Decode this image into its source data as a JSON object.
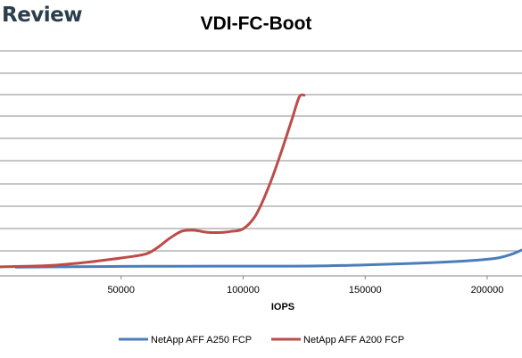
{
  "brand": {
    "text": "Review"
  },
  "chart_data": {
    "type": "line",
    "title": "VDI-FC-Boot",
    "xlabel": "IOPS",
    "ylabel": "",
    "xlim": [
      0,
      215000
    ],
    "xticks": [
      50000,
      100000,
      150000,
      200000
    ],
    "xtick_labels": [
      "50000",
      "100000",
      "150000",
      "200000"
    ],
    "grid": true,
    "y_ticks_visible": false,
    "legend_position": "bottom",
    "series": [
      {
        "name": "NetApp AFF A250 FCP",
        "color": "#4a7ebb",
        "x": [
          7000,
          30000,
          60000,
          90000,
          110000,
          130000,
          150000,
          170000,
          190000,
          200000,
          205000,
          210000,
          214000
        ],
        "y": [
          0.35,
          0.6,
          0.8,
          0.9,
          0.9,
          1.0,
          1.6,
          2.4,
          3.6,
          4.6,
          5.5,
          7.3,
          9.5
        ]
      },
      {
        "name": "NetApp AFF A200 FCP",
        "color": "#be4b48",
        "x": [
          0,
          20000,
          30000,
          40000,
          50000,
          60000,
          65000,
          70000,
          75000,
          80000,
          85000,
          90000,
          95000,
          100000,
          105000,
          110000,
          115000,
          120000,
          123000,
          125000
        ],
        "y": [
          0.55,
          1.2,
          2.2,
          3.6,
          5.3,
          7.4,
          11.0,
          16.0,
          19.8,
          20.2,
          19.2,
          19.0,
          19.6,
          21.0,
          28.0,
          42.0,
          60.0,
          80.0,
          92.0,
          93.0
        ]
      }
    ]
  }
}
